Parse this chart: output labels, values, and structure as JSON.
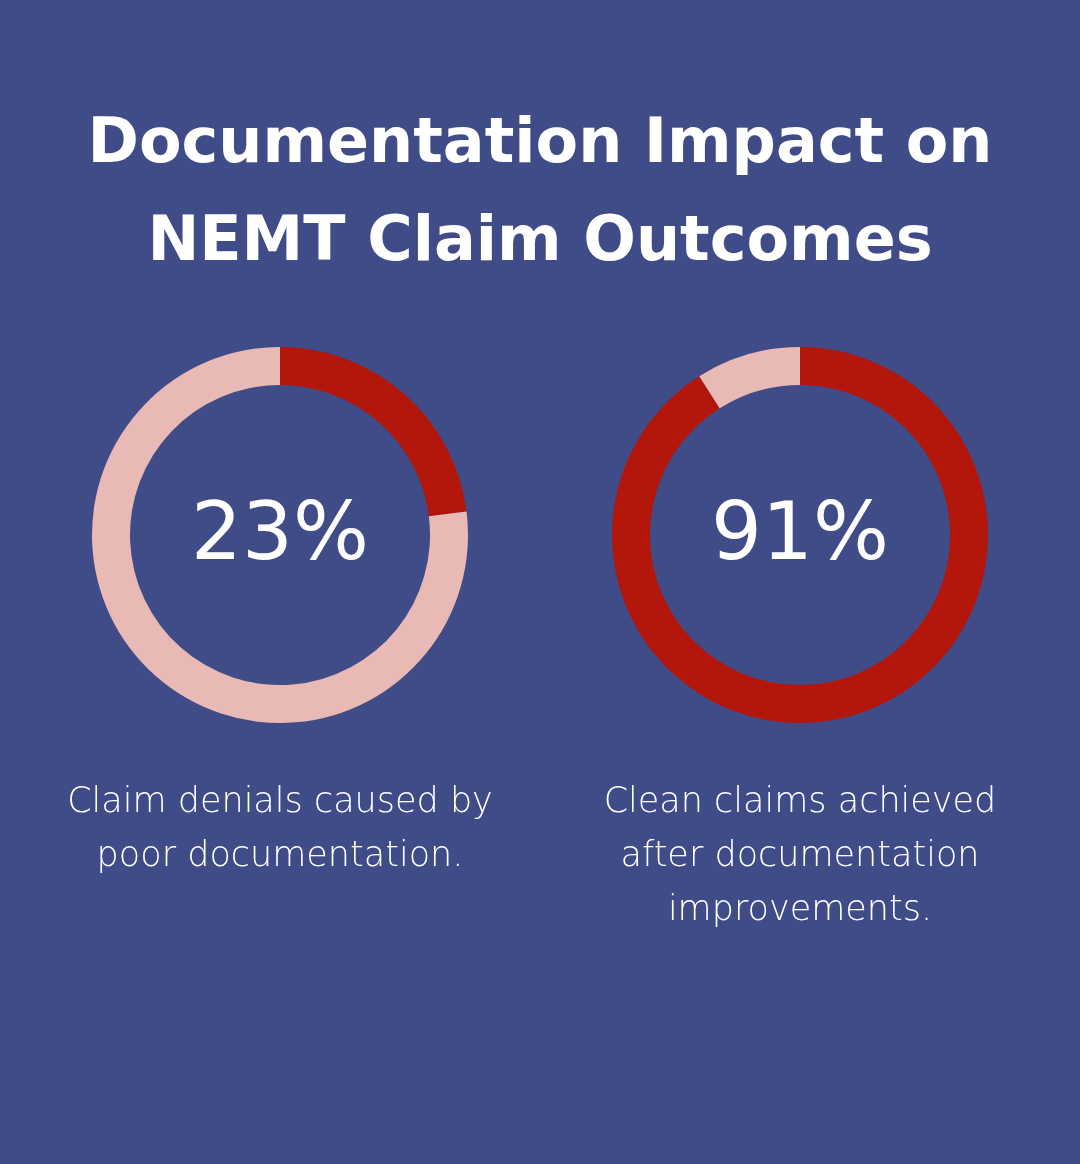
{
  "chart_data": [
    {
      "type": "donut",
      "title": "Documentation Impact on NEMT Claim Outcomes",
      "categories": [
        null,
        null
      ],
      "values": [
        23,
        77
      ],
      "colors": [
        "#b3160b",
        "#e8b9b5"
      ],
      "value_labels": [
        "23%",
        null
      ],
      "annotations": [
        "Claim denials caused by poor documentation."
      ]
    },
    {
      "type": "donut",
      "categories": [
        null,
        null
      ],
      "values": [
        91,
        9
      ],
      "colors": [
        "#b3160b",
        "#e8b9b5"
      ],
      "value_labels": [
        "91%",
        null
      ],
      "annotations": [
        "Clean claims achieved after documentation improvements."
      ]
    }
  ]
}
